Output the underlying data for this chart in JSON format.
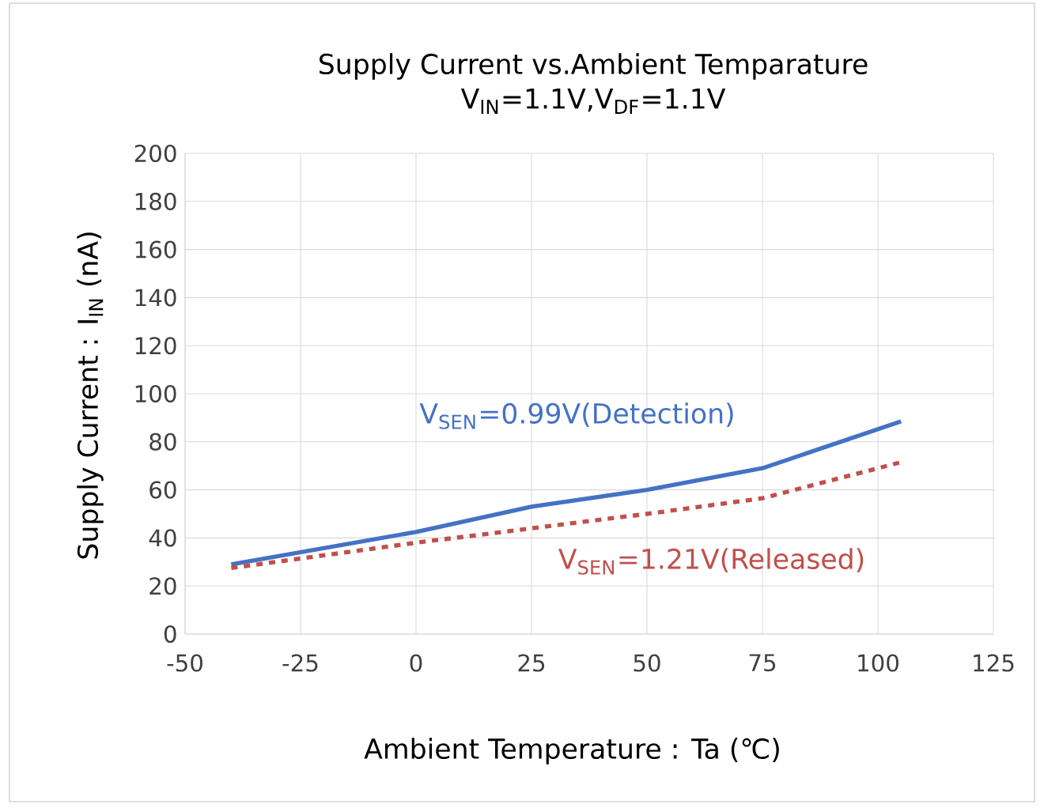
{
  "chart_data": {
    "type": "line",
    "title": "Supply Current vs.Ambient Temparature",
    "subtitle": "V$_{IN}$=1.1V,V$_{DF}$=1.1V",
    "xlabel": "Ambient Temperature : Ta (℃)",
    "ylabel": "Supply Current : I$_{IN}$ (nA)",
    "x": [
      -40,
      0,
      25,
      50,
      75,
      105
    ],
    "series": [
      {
        "name": "V$_{SEN}$=0.99V(Detection)",
        "color": "#4472c4",
        "line_style": "solid",
        "values": [
          29,
          42.5,
          53,
          60,
          69,
          88.5
        ]
      },
      {
        "name": "V$_{SEN}$=1.21V(Released)",
        "color": "#c0504d",
        "line_style": "dashed",
        "values": [
          27.5,
          38,
          44,
          50,
          56.5,
          71.5
        ]
      }
    ],
    "xlim": [
      -50,
      125
    ],
    "xticks": [
      -50,
      -25,
      0,
      25,
      50,
      75,
      100,
      125
    ],
    "ylim": [
      0,
      200
    ],
    "yticks": [
      0,
      20,
      40,
      60,
      80,
      100,
      120,
      140,
      160,
      180,
      200
    ],
    "grid": true,
    "legend": false
  }
}
